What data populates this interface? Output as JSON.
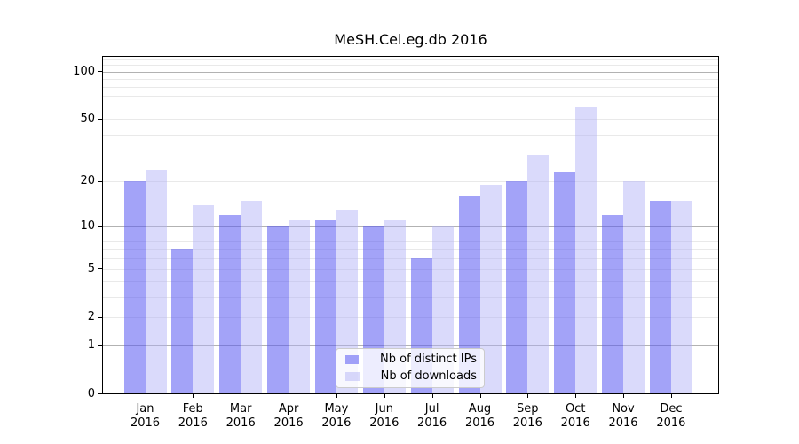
{
  "title": "MeSH.Cel.eg.db 2016",
  "legend": {
    "items": [
      {
        "label": "Nb of distinct IPs",
        "color_key": "distinct_ips"
      },
      {
        "label": "Nb of downloads",
        "color_key": "downloads"
      }
    ]
  },
  "colors": {
    "distinct_ips": "rgba(87,87,243,0.55)",
    "downloads": "rgba(172,172,246,0.45)",
    "distinct_ips_opaque": "#a3a3f8",
    "downloads_opaque": "#d9d9fa",
    "grid_major": "#b2b2b2",
    "grid_minor": "#e9e9e9",
    "axis": "#000000",
    "legend_border": "#cccccc"
  },
  "chart_data": {
    "type": "bar",
    "title": "MeSH.Cel.eg.db 2016",
    "categories": [
      "Jan",
      "Feb",
      "Mar",
      "Apr",
      "May",
      "Jun",
      "Jul",
      "Aug",
      "Sep",
      "Oct",
      "Nov",
      "Dec"
    ],
    "year": "2016",
    "series": [
      {
        "name": "Nb of distinct IPs",
        "values": [
          20,
          7,
          12,
          10,
          11,
          10,
          6,
          16,
          20,
          23,
          12,
          15
        ]
      },
      {
        "name": "Nb of downloads",
        "values": [
          24,
          14,
          15,
          11,
          13,
          11,
          10,
          19,
          30,
          60,
          20,
          15
        ]
      }
    ],
    "xlabel": "",
    "ylabel": "",
    "yticks": [
      0,
      1,
      2,
      5,
      10,
      20,
      50,
      100
    ],
    "scale": "log1p",
    "ylim": [
      0,
      126
    ],
    "grid": {
      "major": [
        1,
        10,
        100
      ],
      "minor": [
        2,
        3,
        4,
        5,
        6,
        7,
        8,
        9,
        20,
        30,
        40,
        50,
        60,
        70,
        80,
        90,
        110,
        120
      ]
    },
    "legend_position": "lower center"
  }
}
